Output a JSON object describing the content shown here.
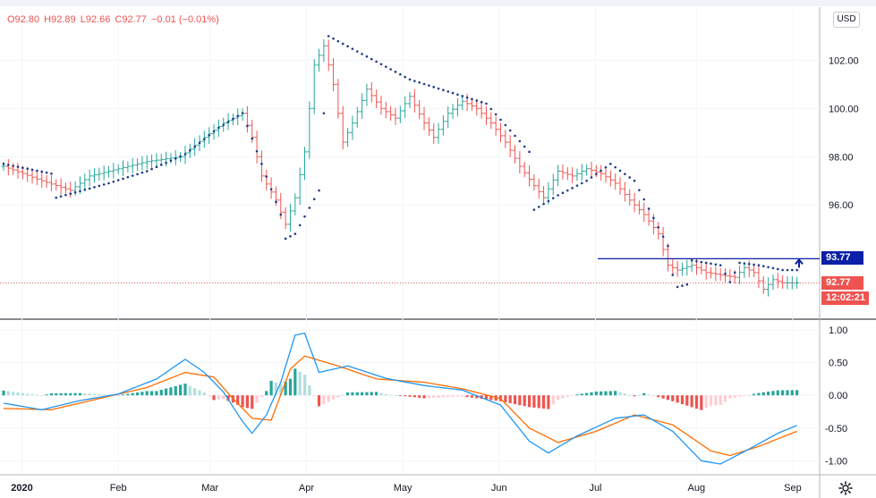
{
  "ohlc": {
    "open": "O92.80",
    "high": "H92.89",
    "low": "L92.66",
    "close": "C92.77",
    "change": "−0.01 (−0.01%)"
  },
  "currency_button": "USD",
  "price_tags": {
    "alert_level": "93.77",
    "last_price": "92.77",
    "countdown": "12:02:21"
  },
  "colors": {
    "up": "#26a69a",
    "down": "#ef5350",
    "sar": "#1e3a8a",
    "macd": "#2196f3",
    "signal": "#ff6d00",
    "alert": "#0b1fa8",
    "axis_text": "#131722"
  },
  "settings_icon": "gear-icon",
  "chart_data": [
    {
      "type": "ohlc",
      "x_ticks": [
        "2020",
        "Feb",
        "Mar",
        "Apr",
        "May",
        "Jun",
        "Jul",
        "Aug",
        "Sep"
      ],
      "y_ticks": [
        96.0,
        98.0,
        100.0,
        102.0
      ],
      "ylim": [
        91.3,
        104.2
      ],
      "close_path": [
        [
          0,
          97.6
        ],
        [
          8,
          97.0
        ],
        [
          14,
          96.6
        ],
        [
          18,
          97.2
        ],
        [
          24,
          97.5
        ],
        [
          30,
          97.8
        ],
        [
          37,
          98.0
        ],
        [
          42,
          98.8
        ],
        [
          46,
          99.4
        ],
        [
          50,
          99.8
        ],
        [
          52,
          98.8
        ],
        [
          54,
          97.2
        ],
        [
          57,
          96.2
        ],
        [
          59,
          95.2
        ],
        [
          61,
          96.3
        ],
        [
          63,
          98.2
        ],
        [
          65,
          101.8
        ],
        [
          67,
          102.6
        ],
        [
          69,
          101.0
        ],
        [
          71,
          98.6
        ],
        [
          73,
          99.4
        ],
        [
          76,
          100.8
        ],
        [
          79,
          100.0
        ],
        [
          82,
          99.6
        ],
        [
          85,
          100.5
        ],
        [
          88,
          99.4
        ],
        [
          90,
          98.8
        ],
        [
          93,
          99.8
        ],
        [
          96,
          100.3
        ],
        [
          99,
          100.0
        ],
        [
          102,
          99.4
        ],
        [
          105,
          98.6
        ],
        [
          108,
          97.6
        ],
        [
          111,
          96.8
        ],
        [
          113,
          96.3
        ],
        [
          116,
          97.4
        ],
        [
          119,
          97.2
        ],
        [
          122,
          97.5
        ],
        [
          125,
          97.3
        ],
        [
          128,
          96.9
        ],
        [
          131,
          96.2
        ],
        [
          134,
          95.6
        ],
        [
          137,
          94.8
        ],
        [
          139,
          93.5
        ],
        [
          141,
          93.3
        ],
        [
          144,
          93.5
        ],
        [
          147,
          93.2
        ],
        [
          150,
          93.1
        ],
        [
          153,
          93.0
        ],
        [
          155,
          93.4
        ],
        [
          157,
          93.2
        ],
        [
          159,
          92.5
        ],
        [
          161,
          92.9
        ],
        [
          163,
          92.77
        ]
      ],
      "sar_path": [
        [
          0,
          97.7
        ],
        [
          10,
          97.3
        ],
        [
          11,
          96.3
        ],
        [
          22,
          96.9
        ],
        [
          30,
          97.4
        ],
        [
          38,
          98.1
        ],
        [
          45,
          99.2
        ],
        [
          50,
          99.8
        ],
        [
          58,
          95.6
        ],
        [
          59,
          94.6
        ],
        [
          61,
          94.8
        ],
        [
          66,
          96.6
        ],
        [
          68,
          103.0
        ],
        [
          85,
          101.2
        ],
        [
          101,
          100.2
        ],
        [
          110,
          98.2
        ],
        [
          111,
          95.8
        ],
        [
          116,
          96.4
        ],
        [
          122,
          97.0
        ],
        [
          127,
          97.7
        ],
        [
          132,
          97.0
        ],
        [
          139,
          94.3
        ],
        [
          140,
          93.1
        ],
        [
          141,
          92.6
        ],
        [
          143,
          92.7
        ],
        [
          144,
          93.7
        ],
        [
          150,
          93.5
        ],
        [
          152,
          92.8
        ],
        [
          154,
          93.6
        ],
        [
          158,
          93.5
        ],
        [
          163,
          93.3
        ]
      ],
      "alert_level": 93.77,
      "last_price": 92.77
    },
    {
      "type": "macd",
      "y_ticks": [
        1.0,
        0.5,
        0.0,
        -0.5,
        -1.0
      ],
      "ylim": [
        -1.2,
        1.15
      ],
      "macd_path": [
        [
          0,
          -0.12
        ],
        [
          8,
          -0.22
        ],
        [
          16,
          -0.08
        ],
        [
          24,
          0.02
        ],
        [
          32,
          0.25
        ],
        [
          38,
          0.55
        ],
        [
          42,
          0.35
        ],
        [
          46,
          0.05
        ],
        [
          50,
          -0.4
        ],
        [
          52,
          -0.58
        ],
        [
          55,
          -0.3
        ],
        [
          58,
          0.2
        ],
        [
          61,
          0.92
        ],
        [
          63,
          0.95
        ],
        [
          66,
          0.35
        ],
        [
          72,
          0.45
        ],
        [
          80,
          0.26
        ],
        [
          88,
          0.15
        ],
        [
          96,
          0.08
        ],
        [
          104,
          -0.15
        ],
        [
          110,
          -0.7
        ],
        [
          114,
          -0.88
        ],
        [
          120,
          -0.62
        ],
        [
          128,
          -0.35
        ],
        [
          134,
          -0.3
        ],
        [
          140,
          -0.55
        ],
        [
          146,
          -1.0
        ],
        [
          150,
          -1.05
        ],
        [
          156,
          -0.82
        ],
        [
          162,
          -0.58
        ],
        [
          166,
          -0.46
        ]
      ],
      "signal_path": [
        [
          0,
          -0.2
        ],
        [
          10,
          -0.22
        ],
        [
          20,
          -0.05
        ],
        [
          30,
          0.12
        ],
        [
          38,
          0.35
        ],
        [
          44,
          0.28
        ],
        [
          48,
          -0.05
        ],
        [
          52,
          -0.35
        ],
        [
          56,
          -0.38
        ],
        [
          60,
          0.4
        ],
        [
          63,
          0.6
        ],
        [
          70,
          0.45
        ],
        [
          78,
          0.25
        ],
        [
          88,
          0.2
        ],
        [
          96,
          0.1
        ],
        [
          104,
          -0.05
        ],
        [
          110,
          -0.5
        ],
        [
          116,
          -0.72
        ],
        [
          124,
          -0.55
        ],
        [
          132,
          -0.3
        ],
        [
          140,
          -0.45
        ],
        [
          148,
          -0.85
        ],
        [
          152,
          -0.92
        ],
        [
          158,
          -0.78
        ],
        [
          166,
          -0.55
        ]
      ],
      "histogram_sample_step": 1
    }
  ]
}
